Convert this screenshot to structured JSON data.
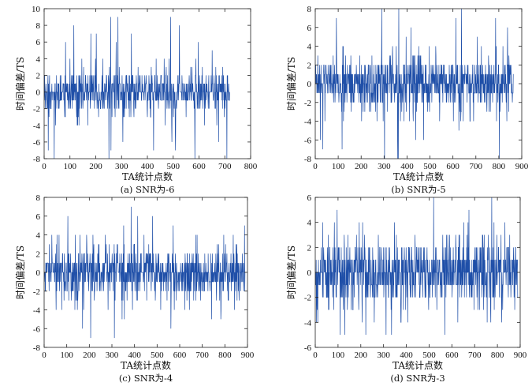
{
  "colors": {
    "series": "#1f4fa8",
    "axis": "#222222"
  },
  "chart_data": [
    {
      "type": "line",
      "title": "",
      "caption": "(a) SNR为-6",
      "xlabel": "TA统计点数",
      "ylabel": "时间偏差/TS",
      "xlim": [
        0,
        800
      ],
      "ylim": [
        -8,
        10
      ],
      "xticks": [
        0,
        100,
        200,
        300,
        400,
        500,
        600,
        700,
        800
      ],
      "yticks": [
        -8,
        -6,
        -4,
        -2,
        0,
        2,
        4,
        6,
        8,
        10
      ],
      "series": [
        {
          "name": "SNR=-6",
          "n_points": 720,
          "value_range": [
            -8,
            9
          ],
          "peak": {
            "x": 258,
            "y": 9
          }
        }
      ]
    },
    {
      "type": "line",
      "title": "",
      "caption": "(b) SNR为-5",
      "xlabel": "TA统计点数",
      "ylabel": "时间偏差/TS",
      "xlim": [
        0,
        900
      ],
      "ylim": [
        -8,
        8
      ],
      "xticks": [
        0,
        100,
        200,
        300,
        400,
        500,
        600,
        700,
        800,
        900
      ],
      "yticks": [
        -8,
        -6,
        -4,
        -2,
        0,
        2,
        4,
        6,
        8
      ],
      "series": [
        {
          "name": "SNR=-5",
          "n_points": 865,
          "value_range": [
            -8,
            8
          ],
          "peak": {
            "x": 290,
            "y": 8
          }
        }
      ]
    },
    {
      "type": "line",
      "title": "",
      "caption": "(c) SNR为-4",
      "xlabel": "TA统计点数",
      "ylabel": "时间偏差/TS",
      "xlim": [
        0,
        900
      ],
      "ylim": [
        -8,
        8
      ],
      "xticks": [
        0,
        100,
        200,
        300,
        400,
        500,
        600,
        700,
        800,
        900
      ],
      "yticks": [
        -8,
        -6,
        -4,
        -2,
        0,
        2,
        4,
        6,
        8
      ],
      "series": [
        {
          "name": "SNR=-4",
          "n_points": 890,
          "value_range": [
            -7,
            7
          ],
          "peak": {
            "x": 385,
            "y": 7
          }
        }
      ]
    },
    {
      "type": "line",
      "title": "",
      "caption": "(d) SNR为-3",
      "xlabel": "TA统计点数",
      "ylabel": "时间偏差/TS",
      "xlim": [
        0,
        900
      ],
      "ylim": [
        -6,
        6
      ],
      "xticks": [
        0,
        100,
        200,
        300,
        400,
        500,
        600,
        700,
        800,
        900
      ],
      "yticks": [
        -6,
        -4,
        -2,
        0,
        2,
        4,
        6
      ],
      "series": [
        {
          "name": "SNR=-3",
          "n_points": 890,
          "value_range": [
            -5,
            6
          ],
          "peak": {
            "x": 520,
            "y": 6
          }
        }
      ]
    }
  ]
}
